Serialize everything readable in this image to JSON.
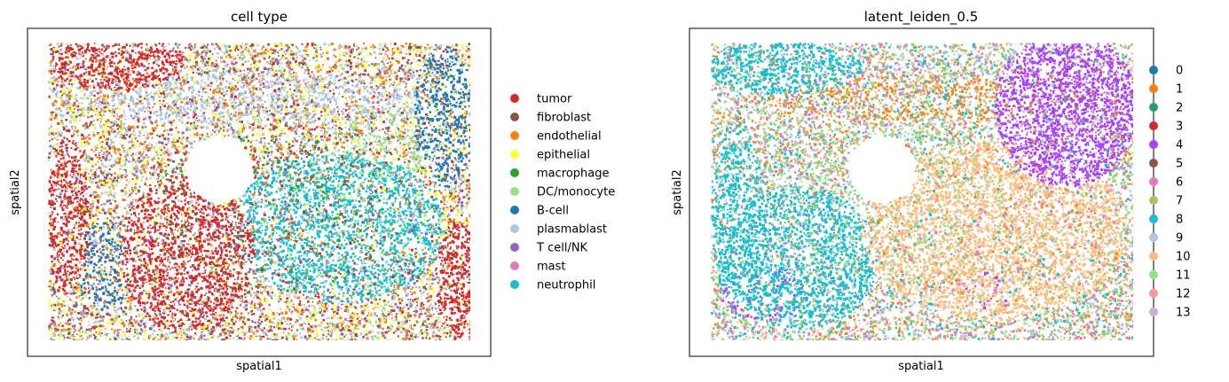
{
  "chart_data": [
    {
      "type": "scatter",
      "title": "cell type",
      "xlabel": "spatial1",
      "ylabel": "spatial2",
      "grid": false,
      "legend_position": "right",
      "ticks": "none",
      "legend": [
        {
          "label": "tumor",
          "color": "#d62728"
        },
        {
          "label": "fibroblast",
          "color": "#8c564b"
        },
        {
          "label": "endothelial",
          "color": "#ff7f0e"
        },
        {
          "label": "epithelial",
          "color": "#ffff33"
        },
        {
          "label": "macrophage",
          "color": "#2ca02c"
        },
        {
          "label": "DC/monocyte",
          "color": "#98df8a"
        },
        {
          "label": "B-cell",
          "color": "#1f77b4"
        },
        {
          "label": "plasmablast",
          "color": "#aec7e8"
        },
        {
          "label": "T cell/NK",
          "color": "#9467bd"
        },
        {
          "label": "mast",
          "color": "#e377c2"
        },
        {
          "label": "neutrophil",
          "color": "#17becf"
        }
      ]
    },
    {
      "type": "scatter",
      "title": "latent_leiden_0.5",
      "xlabel": "spatial1",
      "ylabel": "spatial2",
      "grid": false,
      "legend_position": "right",
      "ticks": "none",
      "legend": [
        {
          "label": "0",
          "color": "#1f77b4"
        },
        {
          "label": "1",
          "color": "#ff7f0e"
        },
        {
          "label": "2",
          "color": "#279e68"
        },
        {
          "label": "3",
          "color": "#d62728"
        },
        {
          "label": "4",
          "color": "#aa40fc"
        },
        {
          "label": "5",
          "color": "#8c564b"
        },
        {
          "label": "6",
          "color": "#e377c2"
        },
        {
          "label": "7",
          "color": "#b5bd61"
        },
        {
          "label": "8",
          "color": "#17becf"
        },
        {
          "label": "9",
          "color": "#aec7e8"
        },
        {
          "label": "10",
          "color": "#ffbb78"
        },
        {
          "label": "11",
          "color": "#98df8a"
        },
        {
          "label": "12",
          "color": "#ff9896"
        },
        {
          "label": "13",
          "color": "#c5b0d5"
        }
      ]
    }
  ]
}
